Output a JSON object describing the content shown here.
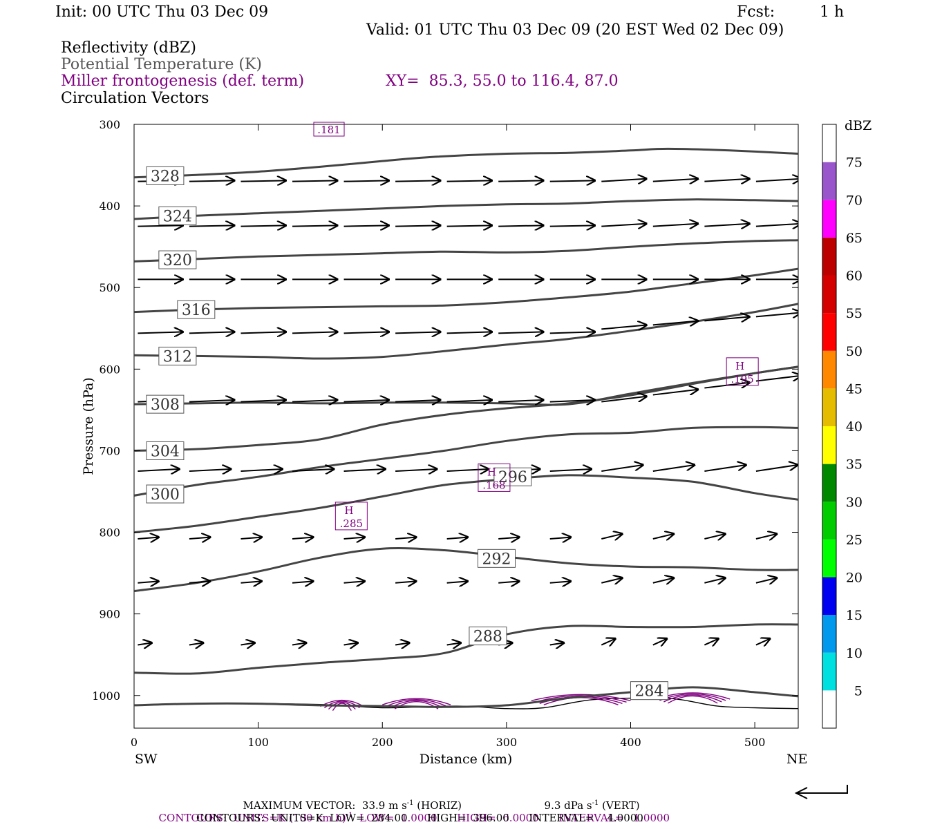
{
  "header": {
    "init": "Init: 00 UTC Thu 03 Dec 09",
    "fcst_label": "Fcst:",
    "fcst_value": "1 h",
    "valid": "Valid: 01 UTC Thu 03 Dec 09 (20 EST Wed 02 Dec 09)",
    "line1": "Reflectivity (dBZ)",
    "line2": "Potential Temperature (K)",
    "line3": "Miller frontogenesis (def. term)",
    "xy": "XY=  85.3, 55.0 to 116.4, 87.0",
    "line4": "Circulation Vectors"
  },
  "colors": {
    "theta": "#444444",
    "fronto": "#800080",
    "vector": "#000000"
  },
  "chart_data": {
    "type": "line",
    "xlabel": "Distance (km)",
    "ylabel": "Pressure (hPa)",
    "xlim": [
      0,
      535
    ],
    "ylim": [
      1040,
      300
    ],
    "x_ticks": [
      0,
      100,
      200,
      300,
      400,
      500
    ],
    "y_ticks": [
      300,
      400,
      500,
      600,
      700,
      800,
      900,
      1000
    ],
    "left_end_label": "SW",
    "right_end_label": "NE",
    "theta_series": [
      {
        "label": "328",
        "points": [
          [
            0,
            365
          ],
          [
            50,
            362
          ],
          [
            100,
            358
          ],
          [
            150,
            352
          ],
          [
            200,
            345
          ],
          [
            240,
            340
          ],
          [
            300,
            336
          ],
          [
            350,
            335
          ],
          [
            400,
            332
          ],
          [
            430,
            330
          ],
          [
            480,
            332
          ],
          [
            535,
            336
          ]
        ],
        "label_at": [
          25,
          363
        ]
      },
      {
        "label": "324",
        "points": [
          [
            0,
            416
          ],
          [
            50,
            412
          ],
          [
            100,
            409
          ],
          [
            150,
            406
          ],
          [
            200,
            403
          ],
          [
            250,
            400
          ],
          [
            300,
            398
          ],
          [
            350,
            397
          ],
          [
            400,
            394
          ],
          [
            450,
            392
          ],
          [
            500,
            393
          ],
          [
            535,
            394
          ]
        ],
        "label_at": [
          35,
          412
        ]
      },
      {
        "label": "320",
        "points": [
          [
            0,
            468
          ],
          [
            50,
            465
          ],
          [
            100,
            462
          ],
          [
            150,
            460
          ],
          [
            200,
            458
          ],
          [
            250,
            456
          ],
          [
            300,
            457
          ],
          [
            350,
            455
          ],
          [
            400,
            450
          ],
          [
            450,
            446
          ],
          [
            500,
            443
          ],
          [
            535,
            442
          ]
        ],
        "label_at": [
          35,
          466
        ]
      },
      {
        "label": "316",
        "points": [
          [
            0,
            530
          ],
          [
            50,
            527
          ],
          [
            100,
            525
          ],
          [
            150,
            524
          ],
          [
            200,
            523
          ],
          [
            250,
            522
          ],
          [
            300,
            518
          ],
          [
            350,
            512
          ],
          [
            400,
            505
          ],
          [
            450,
            495
          ],
          [
            500,
            485
          ],
          [
            535,
            477
          ]
        ],
        "label_at": [
          50,
          527
        ]
      },
      {
        "label": "312",
        "points": [
          [
            0,
            583
          ],
          [
            50,
            584
          ],
          [
            100,
            585
          ],
          [
            150,
            587
          ],
          [
            200,
            585
          ],
          [
            250,
            578
          ],
          [
            300,
            570
          ],
          [
            350,
            563
          ],
          [
            400,
            553
          ],
          [
            450,
            542
          ],
          [
            500,
            530
          ],
          [
            535,
            520
          ]
        ],
        "label_at": [
          35,
          584
        ]
      },
      {
        "label": "308",
        "points": [
          [
            0,
            643
          ],
          [
            50,
            642
          ],
          [
            100,
            641
          ],
          [
            150,
            642
          ],
          [
            200,
            641
          ],
          [
            250,
            641
          ],
          [
            300,
            642
          ],
          [
            350,
            643
          ],
          [
            400,
            630
          ],
          [
            450,
            617
          ],
          [
            500,
            605
          ],
          [
            535,
            597
          ]
        ],
        "label_at": [
          25,
          643
        ]
      },
      {
        "label": "304",
        "points": [
          [
            0,
            700
          ],
          [
            50,
            698
          ],
          [
            100,
            693
          ],
          [
            150,
            686
          ],
          [
            200,
            668
          ],
          [
            250,
            656
          ],
          [
            300,
            648
          ],
          [
            350,
            642
          ],
          [
            400,
            632
          ],
          [
            450,
            618
          ],
          [
            500,
            605
          ],
          [
            535,
            597
          ]
        ],
        "label_at": [
          25,
          700
        ]
      },
      {
        "label": "300",
        "points": [
          [
            0,
            755
          ],
          [
            50,
            742
          ],
          [
            100,
            732
          ],
          [
            150,
            720
          ],
          [
            200,
            710
          ],
          [
            250,
            700
          ],
          [
            300,
            688
          ],
          [
            350,
            680
          ],
          [
            400,
            678
          ],
          [
            450,
            672
          ],
          [
            500,
            671
          ],
          [
            535,
            672
          ]
        ],
        "label_at": [
          25,
          753
        ]
      },
      {
        "label": "296",
        "points": [
          [
            0,
            800
          ],
          [
            50,
            792
          ],
          [
            100,
            781
          ],
          [
            150,
            770
          ],
          [
            200,
            756
          ],
          [
            250,
            742
          ],
          [
            300,
            735
          ],
          [
            350,
            730
          ],
          [
            400,
            733
          ],
          [
            450,
            738
          ],
          [
            500,
            752
          ],
          [
            535,
            760
          ]
        ],
        "label_at": [
          305,
          732
        ]
      },
      {
        "label": "292",
        "points": [
          [
            0,
            872
          ],
          [
            50,
            862
          ],
          [
            100,
            848
          ],
          [
            150,
            831
          ],
          [
            200,
            820
          ],
          [
            250,
            822
          ],
          [
            300,
            830
          ],
          [
            350,
            838
          ],
          [
            400,
            842
          ],
          [
            450,
            843
          ],
          [
            500,
            846
          ],
          [
            535,
            846
          ]
        ],
        "label_at": [
          292,
          832
        ]
      },
      {
        "label": "288",
        "points": [
          [
            0,
            972
          ],
          [
            50,
            973
          ],
          [
            100,
            966
          ],
          [
            150,
            960
          ],
          [
            200,
            955
          ],
          [
            250,
            948
          ],
          [
            300,
            925
          ],
          [
            350,
            915
          ],
          [
            400,
            916
          ],
          [
            450,
            916
          ],
          [
            500,
            913
          ],
          [
            535,
            913
          ]
        ],
        "label_at": [
          285,
          927
        ]
      },
      {
        "label": "284",
        "points": [
          [
            0,
            1012
          ],
          [
            50,
            1010
          ],
          [
            100,
            1010
          ],
          [
            150,
            1012
          ],
          [
            200,
            1013
          ],
          [
            250,
            1014
          ],
          [
            300,
            1012
          ],
          [
            350,
            1003
          ],
          [
            400,
            996
          ],
          [
            450,
            990
          ],
          [
            500,
            996
          ],
          [
            535,
            1001
          ]
        ],
        "label_at": [
          415,
          994
        ]
      }
    ],
    "ground_line": [
      [
        0,
        1012
      ],
      [
        60,
        1010
      ],
      [
        150,
        1011
      ],
      [
        200,
        1015
      ],
      [
        260,
        1013
      ],
      [
        300,
        1016
      ],
      [
        330,
        1015
      ],
      [
        370,
        1005
      ],
      [
        420,
        1003
      ],
      [
        440,
        1005
      ],
      [
        470,
        1013
      ],
      [
        500,
        1015
      ],
      [
        535,
        1016
      ]
    ],
    "frontogenesis_maxima": [
      {
        "label": "H",
        "value": ".285",
        "x": 175,
        "y": 780
      },
      {
        "label": "H",
        "value": ".168",
        "x": 290,
        "y": 733
      },
      {
        "label": "H",
        "value": ".195",
        "x": 490,
        "y": 603
      },
      {
        "label": "",
        "value": ".181",
        "x": 157,
        "y": 307
      }
    ],
    "vector_rows_hPa": [
      370,
      425,
      490,
      556,
      640,
      725,
      808,
      862,
      938
    ],
    "colorbar": {
      "unit": "dBZ",
      "levels": [
        5,
        10,
        15,
        20,
        25,
        30,
        35,
        40,
        45,
        50,
        55,
        60,
        65,
        70,
        75
      ],
      "colors": [
        "#ffffff",
        "#00e0e0",
        "#0099ee",
        "#0000f0",
        "#00ff00",
        "#00cc00",
        "#008800",
        "#ffff00",
        "#e5bc00",
        "#ff8800",
        "#ff0000",
        "#d40000",
        "#bc0000",
        "#ff00ff",
        "#9955cc",
        "#ffffff"
      ]
    }
  },
  "footer": {
    "max_vector": "MAXIMUM VECTOR:  33.9 m s",
    "sup1": "-1",
    "horiz": " (HORIZ)",
    "vert_val": "9.3 dPa s",
    "sup2": "-1",
    "vert": " (VERT)",
    "contours1_a": "CONTOURS:  UNITS=K (100 km h)",
    "contours1_sup": "-1",
    "contours1_b": "  LOW=  1.0000      HIGH=  6.0000      INTERVAL=   1.0000",
    "contours2": "CONTOURS:  UNITS=K  LOW=  284.00      HIGH=  396.00      INTERVAL=    4.0000"
  }
}
